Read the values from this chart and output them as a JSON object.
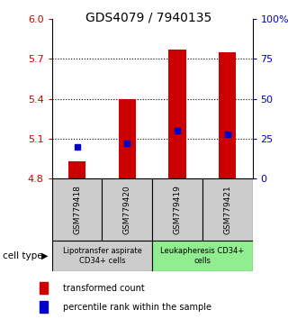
{
  "title": "GDS4079 / 7940135",
  "samples": [
    "GSM779418",
    "GSM779420",
    "GSM779419",
    "GSM779421"
  ],
  "bar_values": [
    4.93,
    5.4,
    5.77,
    5.75
  ],
  "percentile_values": [
    20,
    22,
    30,
    28
  ],
  "ylim_left": [
    4.8,
    6.0
  ],
  "ylim_right": [
    0,
    100
  ],
  "yticks_left": [
    4.8,
    5.1,
    5.4,
    5.7,
    6.0
  ],
  "yticks_right": [
    0,
    25,
    50,
    75,
    100
  ],
  "bar_color": "#cc0000",
  "dot_color": "#0000cc",
  "bar_bottom": 4.8,
  "dotted_gridlines": [
    5.1,
    5.4,
    5.7
  ],
  "group_labels": [
    "Lipotransfer aspirate\nCD34+ cells",
    "Leukapheresis CD34+\ncells"
  ],
  "group_ranges": [
    [
      0,
      2
    ],
    [
      2,
      4
    ]
  ],
  "group_colors": [
    "#cccccc",
    "#90ee90"
  ],
  "cell_type_label": "cell type",
  "legend_bar_label": "transformed count",
  "legend_dot_label": "percentile rank within the sample",
  "title_fontsize": 10,
  "tick_fontsize": 8,
  "sample_fontsize": 6.5,
  "group_fontsize": 6,
  "legend_fontsize": 7,
  "bar_width": 0.35
}
